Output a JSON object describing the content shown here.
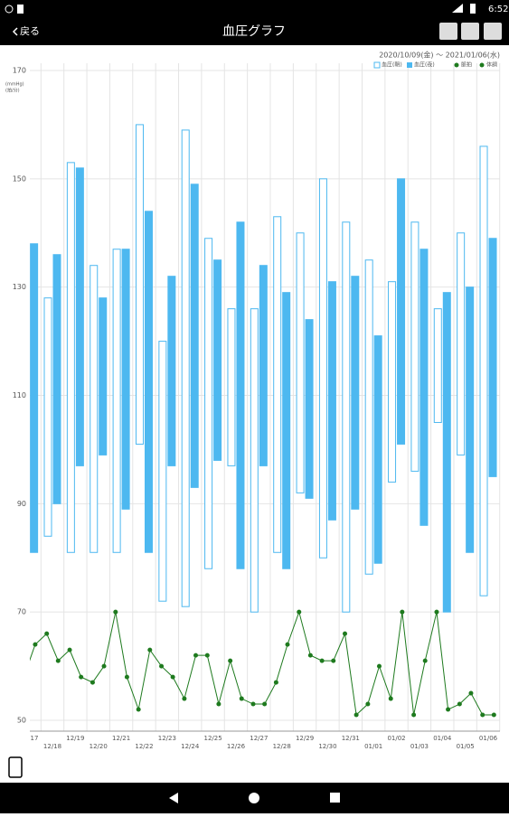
{
  "status_bar": {
    "time": "6:52"
  },
  "header": {
    "back": "戻る",
    "title": "血圧グラフ"
  },
  "chart_data": {
    "type": "bp_range",
    "date_range": "2020/10/09(金) ～ 2021/01/06(水)",
    "y_label": [
      "(mmHg)",
      "(拍/分)"
    ],
    "categories": [
      "17",
      "12/18",
      "12/19",
      "12/20",
      "12/21",
      "12/22",
      "12/23",
      "12/24",
      "12/25",
      "12/26",
      "12/27",
      "12/28",
      "12/29",
      "12/30",
      "12/31",
      "01/01",
      "01/02",
      "01/03",
      "01/04",
      "01/05",
      "01/06"
    ],
    "series": [
      {
        "name": "血圧(朝)",
        "color": "#4db8f0",
        "style": "hollow",
        "high": [
          null,
          128,
          153,
          134,
          137,
          160,
          120,
          159,
          139,
          126,
          126,
          143,
          140,
          150,
          142,
          135,
          131,
          142,
          126,
          140,
          156
        ],
        "low": [
          null,
          84,
          81,
          81,
          81,
          101,
          72,
          71,
          78,
          97,
          70,
          81,
          92,
          80,
          70,
          77,
          94,
          96,
          105,
          99,
          73
        ]
      },
      {
        "name": "血圧(夜)",
        "color": "#4db8f0",
        "style": "filled",
        "high": [
          138,
          136,
          152,
          128,
          137,
          144,
          132,
          149,
          135,
          142,
          134,
          129,
          124,
          131,
          132,
          121,
          150,
          137,
          129,
          130,
          139
        ],
        "low": [
          81,
          90,
          97,
          99,
          89,
          81,
          97,
          93,
          98,
          78,
          97,
          78,
          91,
          87,
          89,
          79,
          101,
          86,
          70,
          81,
          95
        ]
      },
      {
        "name": "脈拍",
        "color": "#1e7a1e",
        "style": "line",
        "am": [
          58,
          66,
          63,
          57,
          70,
          52,
          60,
          54,
          62,
          61,
          53,
          57,
          70,
          61,
          66,
          53,
          54,
          51,
          70,
          53,
          51
        ],
        "pm": [
          64,
          61,
          58,
          60,
          58,
          63,
          58,
          62,
          53,
          54,
          53,
          64,
          62,
          61,
          51,
          60,
          70,
          61,
          52,
          55,
          51
        ]
      },
      {
        "name": "体調",
        "color": "#1e7a1e",
        "style": "dot"
      }
    ],
    "ylim": [
      48,
      170
    ],
    "yticks": [
      50,
      70,
      90,
      110,
      130,
      150,
      170
    ],
    "grid": true
  }
}
